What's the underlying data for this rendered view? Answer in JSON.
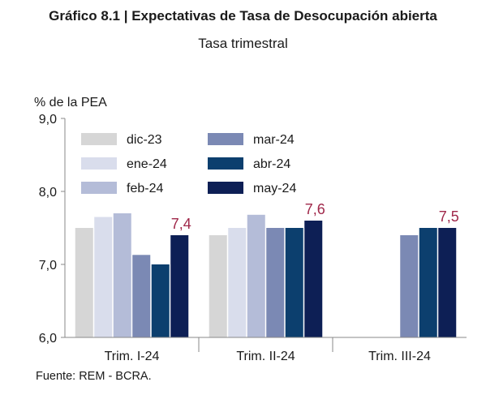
{
  "title": "Gráfico 8.1 | Expectativas de Tasa de Desocupación abierta",
  "subtitle": "Tasa trimestral",
  "source": "Fuente: REM - BCRA.",
  "chart_data": {
    "type": "bar",
    "title": "Gráfico 8.1 | Expectativas de Tasa de Desocupación abierta",
    "subtitle": "Tasa trimestral",
    "ylabel": "% de la PEA",
    "xlabel": "",
    "ylim": [
      6.0,
      9.0
    ],
    "yticks": [
      "6,0",
      "7,0",
      "8,0",
      "9,0"
    ],
    "ytick_values": [
      6.0,
      7.0,
      8.0,
      9.0
    ],
    "categories": [
      "Trim. I-24",
      "Trim. II-24",
      "Trim. III-24"
    ],
    "legend_position": "top-left",
    "grid": false,
    "series": [
      {
        "name": "dic-23",
        "color": "#d6d6d6",
        "values": [
          7.5,
          7.4,
          null
        ]
      },
      {
        "name": "ene-24",
        "color": "#d9ddec",
        "values": [
          7.65,
          7.5,
          null
        ]
      },
      {
        "name": "feb-24",
        "color": "#b4bcd8",
        "values": [
          7.7,
          7.68,
          null
        ]
      },
      {
        "name": "mar-24",
        "color": "#7b89b4",
        "values": [
          7.13,
          7.5,
          7.4
        ]
      },
      {
        "name": "abr-24",
        "color": "#0c3f6e",
        "values": [
          7.0,
          7.5,
          7.5
        ]
      },
      {
        "name": "may-24",
        "color": "#0d1f55",
        "values": [
          7.4,
          7.6,
          7.5
        ]
      }
    ],
    "data_labels": [
      {
        "category": "Trim. I-24",
        "series": "may-24",
        "text": "7,4"
      },
      {
        "category": "Trim. II-24",
        "series": "may-24",
        "text": "7,6"
      },
      {
        "category": "Trim. III-24",
        "series": "may-24",
        "text": "7,5"
      }
    ],
    "label_color": "#a0284a"
  }
}
